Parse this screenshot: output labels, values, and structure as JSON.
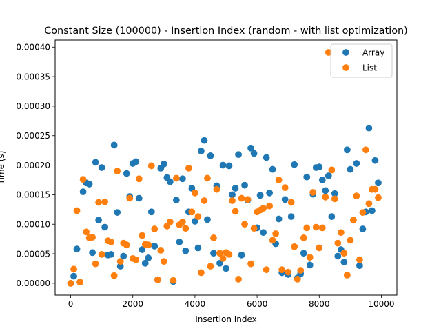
{
  "chart_data": {
    "type": "scatter",
    "title": "Constant Size (100000) - Insertion Index (random - with list optimization)",
    "xlabel": "Insertion Index",
    "ylabel": "Time (s)",
    "xlim": [
      -500,
      10500
    ],
    "ylim": [
      -2e-05,
      0.000412
    ],
    "x_ticks": [
      0,
      2000,
      4000,
      6000,
      8000,
      10000
    ],
    "x_tick_labels": [
      "0",
      "2000",
      "4000",
      "6000",
      "8000",
      "10000"
    ],
    "y_ticks": [
      0,
      5e-05,
      0.0001,
      0.00015,
      0.0002,
      0.00025,
      0.0003,
      0.00035,
      0.0004
    ],
    "y_tick_labels": [
      "0.00000",
      "0.00005",
      "0.00010",
      "0.00015",
      "0.00020",
      "0.00025",
      "0.00030",
      "0.00035",
      "0.00040"
    ],
    "grid": false,
    "legend_position": "top-right",
    "series": [
      {
        "name": "Array",
        "color": "#1f77b4",
        "points": [
          [
            0,
            0.0
          ],
          [
            100,
            1.2e-05
          ],
          [
            200,
            5.8e-05
          ],
          [
            300,
            2e-06
          ],
          [
            400,
            0.000155
          ],
          [
            500,
            0.00017
          ],
          [
            600,
            0.000168
          ],
          [
            700,
            5.2e-05
          ],
          [
            800,
            0.000205
          ],
          [
            900,
            0.000107
          ],
          [
            1000,
            0.000196
          ],
          [
            1100,
            9.5e-05
          ],
          [
            1200,
            4.8e-05
          ],
          [
            1300,
            4.9e-05
          ],
          [
            1400,
            0.000234
          ],
          [
            1500,
            0.00012
          ],
          [
            1600,
            2.9e-05
          ],
          [
            1700,
            4.6e-05
          ],
          [
            1800,
            0.000186
          ],
          [
            1900,
            0.000147
          ],
          [
            2000,
            0.000203
          ],
          [
            2100,
            0.000206
          ],
          [
            2200,
            0.000144
          ],
          [
            2300,
            5.7e-05
          ],
          [
            2400,
            3.4e-05
          ],
          [
            2500,
            4.3e-05
          ],
          [
            2600,
            0.000121
          ],
          [
            2700,
            6.3e-05
          ],
          [
            2800,
            6e-06
          ],
          [
            2900,
            0.000195
          ],
          [
            3000,
            0.000202
          ],
          [
            3100,
            0.000179
          ],
          [
            3200,
            0.000172
          ],
          [
            3300,
            3e-06
          ],
          [
            3400,
            0.000141
          ],
          [
            3500,
            7e-05
          ],
          [
            3600,
            0.000177
          ],
          [
            3700,
            5.5e-05
          ],
          [
            3800,
            0.000121
          ],
          [
            3900,
            0.000161
          ],
          [
            4000,
            0.000105
          ],
          [
            4100,
            6e-05
          ],
          [
            4200,
            0.000224
          ],
          [
            4300,
            0.000242
          ],
          [
            4400,
            0.000108
          ],
          [
            4500,
            0.000216
          ],
          [
            4600,
            5.1e-05
          ],
          [
            4700,
            0.000165
          ],
          [
            4800,
            3.4e-05
          ],
          [
            4900,
            0.0002
          ],
          [
            5000,
            2.5e-05
          ],
          [
            5100,
            0.000199
          ],
          [
            5200,
            0.00015
          ],
          [
            5300,
            0.000161
          ],
          [
            5400,
            0.000218
          ],
          [
            5500,
            4.8e-05
          ],
          [
            5600,
            0.000166
          ],
          [
            5700,
            0.000141
          ],
          [
            5800,
            0.000229
          ],
          [
            5900,
            0.00022
          ],
          [
            6000,
            9.4e-05
          ],
          [
            6100,
            0.000149
          ],
          [
            6200,
            8.6e-05
          ],
          [
            6300,
            0.000213
          ],
          [
            6400,
            0.000153
          ],
          [
            6500,
            0.000193
          ],
          [
            6600,
            6.7e-05
          ],
          [
            6700,
            0.000109
          ],
          [
            6800,
            1.8e-05
          ],
          [
            6900,
            0.000142
          ],
          [
            7000,
            1.5e-05
          ],
          [
            7100,
            0.000113
          ],
          [
            7200,
            0.000201
          ],
          [
            7300,
            9e-06
          ],
          [
            7400,
            1.6e-05
          ],
          [
            7500,
            5.1e-05
          ],
          [
            7600,
            0.00018
          ],
          [
            7700,
            3.1e-05
          ],
          [
            7800,
            0.000151
          ],
          [
            7900,
            0.000196
          ],
          [
            8000,
            0.000197
          ],
          [
            8100,
            0.000175
          ],
          [
            8200,
            0.000157
          ],
          [
            8300,
            0.000182
          ],
          [
            8400,
            0.000113
          ],
          [
            8500,
            0.000152
          ],
          [
            8600,
            4.6e-05
          ],
          [
            8700,
            5.7e-05
          ],
          [
            8800,
            3.6e-05
          ],
          [
            8900,
            0.000226
          ],
          [
            9000,
            0.000193
          ],
          [
            9100,
            0.000107
          ],
          [
            9200,
            0.000203
          ],
          [
            9300,
            3e-05
          ],
          [
            9400,
            9.2e-05
          ],
          [
            9500,
            0.000121
          ],
          [
            9600,
            0.000263
          ],
          [
            9700,
            0.000123
          ],
          [
            9800,
            0.000208
          ],
          [
            9900,
            0.00017
          ]
        ]
      },
      {
        "name": "List",
        "color": "#ff7f0e",
        "points": [
          [
            0,
            0.0
          ],
          [
            100,
            2.4e-05
          ],
          [
            200,
            0.000123
          ],
          [
            300,
            2e-06
          ],
          [
            400,
            0.000176
          ],
          [
            500,
            8.7e-05
          ],
          [
            600,
            7.7e-05
          ],
          [
            700,
            7.8e-05
          ],
          [
            800,
            3.3e-05
          ],
          [
            900,
            0.000137
          ],
          [
            1000,
            4.9e-05
          ],
          [
            1100,
            0.000138
          ],
          [
            1200,
            7.2e-05
          ],
          [
            1300,
            7e-05
          ],
          [
            1400,
            1.3e-05
          ],
          [
            1500,
            0.00019
          ],
          [
            1600,
            3.7e-05
          ],
          [
            1700,
            6.8e-05
          ],
          [
            1800,
            6.5e-05
          ],
          [
            1900,
            0.000144
          ],
          [
            2000,
            4.2e-05
          ],
          [
            2100,
            4e-05
          ],
          [
            2200,
            0.000177
          ],
          [
            2300,
            8.1e-05
          ],
          [
            2400,
            6.6e-05
          ],
          [
            2500,
            6.5e-05
          ],
          [
            2600,
            0.000199
          ],
          [
            2700,
            9.2e-05
          ],
          [
            2800,
            6e-06
          ],
          [
            2900,
            5.6e-05
          ],
          [
            3000,
            3.7e-05
          ],
          [
            3100,
            9.7e-05
          ],
          [
            3200,
            0.000104
          ],
          [
            3300,
            5e-06
          ],
          [
            3400,
            0.000178
          ],
          [
            3500,
            9.9e-05
          ],
          [
            3600,
            0.000104
          ],
          [
            3700,
            9.3e-05
          ],
          [
            3800,
            0.000195
          ],
          [
            3900,
            0.000121
          ],
          [
            4000,
            0.000153
          ],
          [
            4100,
            0.000113
          ],
          [
            4200,
            1.8e-05
          ],
          [
            4300,
            0.00014
          ],
          [
            4400,
            0.000178
          ],
          [
            4500,
            2.9e-05
          ],
          [
            4600,
            7.7e-05
          ],
          [
            4700,
            0.000159
          ],
          [
            4800,
            5.1e-05
          ],
          [
            4900,
            4.2e-05
          ],
          [
            5000,
            5.2e-05
          ],
          [
            5100,
            4.9e-05
          ],
          [
            5200,
            0.00014
          ],
          [
            5300,
            0.000122
          ],
          [
            5400,
            7e-06
          ],
          [
            5500,
            0.000144
          ],
          [
            5600,
            0.0001
          ],
          [
            5700,
            0.000142
          ],
          [
            5800,
            3.3e-05
          ],
          [
            5900,
            9.3e-05
          ],
          [
            6000,
            0.000121
          ],
          [
            6100,
            0.000124
          ],
          [
            6200,
            0.000127
          ],
          [
            6300,
            2.3e-05
          ],
          [
            6400,
            0.000131
          ],
          [
            6500,
            7.3e-05
          ],
          [
            6600,
            8.4e-05
          ],
          [
            6700,
            0.000175
          ],
          [
            6800,
            2.3e-05
          ],
          [
            6900,
            0.000162
          ],
          [
            7000,
            1.9e-05
          ],
          [
            7100,
            0.000137
          ],
          [
            7200,
            6.2e-05
          ],
          [
            7300,
            7e-06
          ],
          [
            7400,
            2.2e-05
          ],
          [
            7500,
            7.7e-05
          ],
          [
            7600,
            9.4e-05
          ],
          [
            7700,
            4.4e-05
          ],
          [
            7800,
            0.000154
          ],
          [
            7900,
            9.5e-05
          ],
          [
            8000,
            6e-05
          ],
          [
            8100,
            9.4e-05
          ],
          [
            8200,
            0.000146
          ],
          [
            8300,
            0.000391
          ],
          [
            8400,
            0.000192
          ],
          [
            8500,
            0.000143
          ],
          [
            8600,
            6.8e-05
          ],
          [
            8700,
            8.6e-05
          ],
          [
            8800,
            5.1e-05
          ],
          [
            8900,
            1.4e-05
          ],
          [
            9000,
            7.3e-05
          ],
          [
            9100,
            0.000107
          ],
          [
            9200,
            0.000148
          ],
          [
            9300,
            4e-05
          ],
          [
            9400,
            0.00012
          ],
          [
            9500,
            0.000226
          ],
          [
            9600,
            0.000135
          ],
          [
            9700,
            0.000159
          ],
          [
            9800,
            0.000159
          ],
          [
            9900,
            0.000145
          ]
        ]
      }
    ]
  }
}
